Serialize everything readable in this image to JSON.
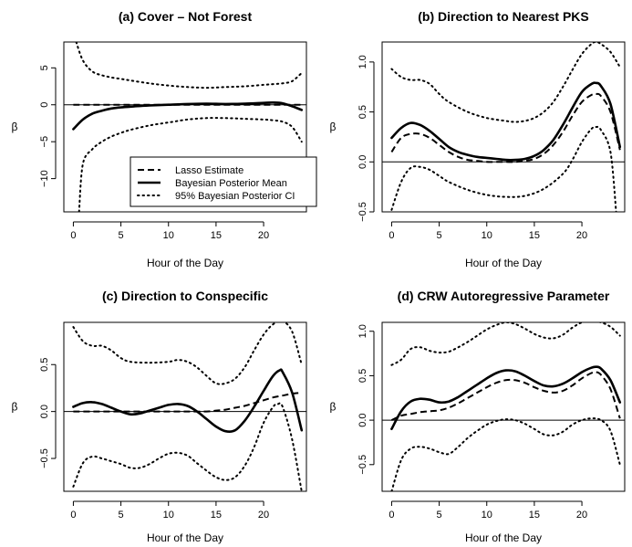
{
  "figure": {
    "legend": {
      "placement": "bottom-right of panel (a)",
      "entries": [
        {
          "label": "Lasso Estimate",
          "style": "dashed"
        },
        {
          "label": "Bayesian Posterior Mean",
          "style": "solid"
        },
        {
          "label": "95% Bayesian Posterior CI",
          "style": "dotted"
        }
      ]
    }
  },
  "chart_data": [
    {
      "type": "line",
      "title": "(a) Cover – Not Forest",
      "xlabel": "Hour of the Day",
      "ylabel": "β",
      "xlim": [
        -1,
        24.5
      ],
      "ylim": [
        -14.5,
        8.5
      ],
      "xticks": [
        0,
        5,
        10,
        15,
        20
      ],
      "yticks": [
        -10,
        -5,
        0,
        5
      ],
      "ytick_labels": [
        "−10",
        "−5",
        "0",
        "5"
      ],
      "hline": 0,
      "grid": false,
      "series": [
        {
          "name": "Lasso Estimate",
          "style": "dashed",
          "x": [
            0,
            2,
            4,
            6,
            8,
            10,
            12,
            14,
            16,
            18,
            20,
            22,
            24
          ],
          "y": [
            0,
            0,
            0,
            0,
            0,
            0,
            0,
            0,
            0,
            0,
            0,
            0,
            0
          ]
        },
        {
          "name": "Bayesian Posterior Mean",
          "style": "solid",
          "x": [
            0,
            1,
            2,
            3,
            4,
            5,
            6,
            8,
            10,
            12,
            14,
            16,
            18,
            20,
            21,
            22,
            23,
            24
          ],
          "y": [
            -3.3,
            -2.0,
            -1.2,
            -0.8,
            -0.5,
            -0.35,
            -0.25,
            -0.1,
            0.0,
            0.1,
            0.15,
            0.1,
            0.15,
            0.25,
            0.3,
            0.2,
            -0.2,
            -0.7
          ]
        },
        {
          "name": "95% Bayesian Posterior CI upper",
          "style": "dotted",
          "x": [
            0.3,
            1,
            2,
            3,
            4,
            5,
            6,
            8,
            10,
            12,
            14,
            16,
            18,
            20,
            21,
            22,
            23,
            24
          ],
          "y": [
            8.5,
            6.0,
            4.5,
            4.0,
            3.7,
            3.5,
            3.3,
            2.9,
            2.6,
            2.4,
            2.3,
            2.4,
            2.5,
            2.7,
            2.8,
            2.9,
            3.2,
            4.3
          ]
        },
        {
          "name": "95% Bayesian Posterior CI lower",
          "style": "dotted",
          "x": [
            0.6,
            1,
            2,
            3,
            4,
            5,
            6,
            8,
            10,
            12,
            14,
            16,
            18,
            20,
            21,
            22,
            23,
            24
          ],
          "y": [
            -14.5,
            -8.0,
            -6.0,
            -5.0,
            -4.3,
            -3.8,
            -3.4,
            -2.8,
            -2.4,
            -2.0,
            -1.8,
            -1.8,
            -1.9,
            -2.0,
            -2.1,
            -2.3,
            -3.0,
            -5.0
          ]
        }
      ]
    },
    {
      "type": "line",
      "title": "(b) Direction to Nearest PKS",
      "xlabel": "Hour of the Day",
      "ylabel": "β",
      "xlim": [
        -1,
        24.5
      ],
      "ylim": [
        -0.5,
        1.2
      ],
      "xticks": [
        0,
        5,
        10,
        15,
        20
      ],
      "yticks": [
        -0.5,
        0.0,
        0.5,
        1.0
      ],
      "ytick_labels": [
        "−0.5",
        "0.0",
        "0.5",
        "1.0"
      ],
      "hline": 0,
      "grid": false,
      "series": [
        {
          "name": "Lasso Estimate",
          "style": "dashed",
          "x": [
            0,
            1,
            2,
            3,
            4,
            5,
            6,
            7,
            8,
            9,
            10,
            11,
            12,
            13,
            14,
            15,
            16,
            17,
            18,
            19,
            20,
            21,
            21.5,
            22,
            23,
            24
          ],
          "y": [
            0.1,
            0.24,
            0.28,
            0.28,
            0.24,
            0.17,
            0.1,
            0.05,
            0.02,
            0.01,
            0.0,
            0.0,
            0.0,
            0.0,
            0.01,
            0.03,
            0.08,
            0.17,
            0.3,
            0.46,
            0.6,
            0.67,
            0.68,
            0.66,
            0.5,
            0.12
          ]
        },
        {
          "name": "Bayesian Posterior Mean",
          "style": "solid",
          "x": [
            0,
            1,
            2,
            3,
            4,
            5,
            6,
            7,
            8,
            9,
            10,
            11,
            12,
            13,
            14,
            15,
            16,
            17,
            18,
            19,
            20,
            21,
            21.5,
            22,
            23,
            24
          ],
          "y": [
            0.24,
            0.34,
            0.39,
            0.37,
            0.31,
            0.23,
            0.15,
            0.1,
            0.07,
            0.05,
            0.04,
            0.03,
            0.02,
            0.02,
            0.03,
            0.06,
            0.12,
            0.22,
            0.37,
            0.54,
            0.7,
            0.78,
            0.79,
            0.76,
            0.58,
            0.15
          ]
        },
        {
          "name": "95% Bayesian Posterior CI upper",
          "style": "dotted",
          "x": [
            0,
            1,
            2,
            3,
            4,
            5,
            6,
            8,
            10,
            12,
            13,
            14,
            15,
            16,
            17,
            18,
            19,
            20,
            21,
            21.5,
            22,
            23,
            24
          ],
          "y": [
            0.93,
            0.85,
            0.82,
            0.82,
            0.78,
            0.68,
            0.6,
            0.5,
            0.44,
            0.41,
            0.4,
            0.41,
            0.44,
            0.5,
            0.6,
            0.75,
            0.92,
            1.08,
            1.18,
            1.2,
            1.18,
            1.1,
            0.95
          ]
        },
        {
          "name": "95% Bayesian Posterior CI lower",
          "style": "dotted",
          "x": [
            0,
            1,
            2,
            3,
            4,
            5,
            6,
            8,
            10,
            12,
            14,
            16,
            18,
            19,
            20,
            21,
            21.5,
            22,
            23,
            23.6
          ],
          "y": [
            -0.48,
            -0.2,
            -0.06,
            -0.05,
            -0.08,
            -0.14,
            -0.2,
            -0.28,
            -0.33,
            -0.35,
            -0.34,
            -0.27,
            -0.12,
            0.02,
            0.2,
            0.33,
            0.35,
            0.32,
            0.1,
            -0.5
          ]
        }
      ]
    },
    {
      "type": "line",
      "title": "(c) Direction to Conspecific",
      "xlabel": "Hour of the Day",
      "ylabel": "β",
      "xlim": [
        -1,
        24.5
      ],
      "ylim": [
        -0.85,
        0.95
      ],
      "xticks": [
        0,
        5,
        10,
        15,
        20
      ],
      "yticks": [
        -0.5,
        0.0,
        0.5
      ],
      "ytick_labels": [
        "−0.5",
        "0.0",
        "0.5"
      ],
      "hline": 0,
      "grid": false,
      "series": [
        {
          "name": "Lasso Estimate",
          "style": "dashed",
          "x": [
            0,
            2,
            4,
            6,
            8,
            10,
            12,
            14,
            15,
            16,
            17,
            18,
            19,
            20,
            21,
            22,
            23,
            24
          ],
          "y": [
            0,
            0,
            0,
            0,
            0,
            0,
            0,
            0,
            0.01,
            0.02,
            0.04,
            0.06,
            0.09,
            0.12,
            0.15,
            0.17,
            0.19,
            0.2
          ]
        },
        {
          "name": "Bayesian Posterior Mean",
          "style": "solid",
          "x": [
            0,
            1,
            2,
            3,
            4,
            5,
            6,
            7,
            8,
            9,
            10,
            11,
            12,
            13,
            14,
            15,
            16,
            17,
            18,
            19,
            20,
            21,
            21.7,
            22,
            23,
            24
          ],
          "y": [
            0.05,
            0.09,
            0.1,
            0.08,
            0.04,
            0.0,
            -0.03,
            -0.02,
            0.01,
            0.04,
            0.07,
            0.08,
            0.06,
            0.0,
            -0.08,
            -0.16,
            -0.21,
            -0.2,
            -0.1,
            0.05,
            0.22,
            0.38,
            0.44,
            0.42,
            0.2,
            -0.2
          ]
        },
        {
          "name": "95% Bayesian Posterior CI upper",
          "style": "dotted",
          "x": [
            0,
            1,
            2,
            3,
            4,
            5,
            6,
            8,
            10,
            11,
            12,
            13,
            14,
            15,
            16,
            17,
            18,
            19,
            20,
            21,
            22,
            23,
            24
          ],
          "y": [
            0.9,
            0.75,
            0.7,
            0.7,
            0.65,
            0.57,
            0.53,
            0.52,
            0.53,
            0.55,
            0.53,
            0.47,
            0.38,
            0.3,
            0.3,
            0.35,
            0.47,
            0.65,
            0.82,
            0.93,
            0.96,
            0.85,
            0.5
          ]
        },
        {
          "name": "95% Bayesian Posterior CI lower",
          "style": "dotted",
          "x": [
            0,
            1,
            2,
            3,
            4,
            5,
            6,
            7,
            8,
            9,
            10,
            11,
            12,
            13,
            14,
            15,
            16,
            17,
            18,
            19,
            20,
            21,
            21.5,
            22,
            23,
            24
          ],
          "y": [
            -0.8,
            -0.55,
            -0.48,
            -0.5,
            -0.53,
            -0.56,
            -0.6,
            -0.6,
            -0.56,
            -0.5,
            -0.45,
            -0.44,
            -0.47,
            -0.55,
            -0.63,
            -0.7,
            -0.73,
            -0.7,
            -0.58,
            -0.38,
            -0.12,
            0.05,
            0.08,
            0.05,
            -0.3,
            -0.85
          ]
        }
      ]
    },
    {
      "type": "line",
      "title": "(d) CRW Autoregressive Parameter",
      "xlabel": "Hour of the Day",
      "ylabel": "β",
      "xlim": [
        -1,
        24.5
      ],
      "ylim": [
        -0.8,
        1.1
      ],
      "xticks": [
        0,
        5,
        10,
        15,
        20
      ],
      "yticks": [
        -0.5,
        0.0,
        0.5,
        1.0
      ],
      "ytick_labels": [
        "−0.5",
        "0.0",
        "0.5",
        "1.0"
      ],
      "hline": 0,
      "grid": false,
      "series": [
        {
          "name": "Lasso Estimate",
          "style": "dashed",
          "x": [
            0,
            1,
            2,
            3,
            4,
            5,
            6,
            7,
            8,
            9,
            10,
            11,
            12,
            13,
            14,
            15,
            16,
            17,
            18,
            19,
            20,
            21,
            21.5,
            22,
            23,
            24
          ],
          "y": [
            0.0,
            0.05,
            0.07,
            0.09,
            0.1,
            0.11,
            0.14,
            0.19,
            0.25,
            0.31,
            0.37,
            0.42,
            0.45,
            0.45,
            0.42,
            0.37,
            0.33,
            0.31,
            0.33,
            0.39,
            0.47,
            0.53,
            0.54,
            0.51,
            0.35,
            0.02
          ]
        },
        {
          "name": "Bayesian Posterior Mean",
          "style": "solid",
          "x": [
            0,
            1,
            2,
            3,
            4,
            5,
            6,
            7,
            8,
            9,
            10,
            11,
            12,
            13,
            14,
            15,
            16,
            17,
            18,
            19,
            20,
            21,
            21.5,
            22,
            23,
            24
          ],
          "y": [
            -0.1,
            0.1,
            0.21,
            0.24,
            0.23,
            0.2,
            0.21,
            0.26,
            0.33,
            0.4,
            0.47,
            0.53,
            0.56,
            0.55,
            0.5,
            0.44,
            0.39,
            0.38,
            0.41,
            0.47,
            0.54,
            0.59,
            0.6,
            0.58,
            0.45,
            0.2
          ]
        },
        {
          "name": "95% Bayesian Posterior CI upper",
          "style": "dotted",
          "x": [
            0,
            1,
            2,
            3,
            4,
            5,
            6,
            7,
            8,
            9,
            10,
            11,
            12,
            13,
            14,
            15,
            16,
            17,
            18,
            19,
            20,
            21,
            22,
            23,
            24
          ],
          "y": [
            0.62,
            0.68,
            0.8,
            0.82,
            0.78,
            0.76,
            0.77,
            0.82,
            0.88,
            0.95,
            1.02,
            1.07,
            1.1,
            1.08,
            1.03,
            0.97,
            0.93,
            0.92,
            0.96,
            1.04,
            1.1,
            1.12,
            1.1,
            1.05,
            0.95
          ]
        },
        {
          "name": "95% Bayesian Posterior CI lower",
          "style": "dotted",
          "x": [
            0,
            1,
            2,
            3,
            4,
            5,
            6,
            7,
            8,
            9,
            10,
            11,
            12,
            13,
            14,
            15,
            16,
            17,
            18,
            19,
            20,
            21,
            22,
            23,
            24
          ],
          "y": [
            -0.8,
            -0.45,
            -0.32,
            -0.3,
            -0.32,
            -0.36,
            -0.38,
            -0.3,
            -0.2,
            -0.12,
            -0.05,
            -0.01,
            0.01,
            0.0,
            -0.04,
            -0.1,
            -0.16,
            -0.17,
            -0.13,
            -0.05,
            0.0,
            0.02,
            0.0,
            -0.12,
            -0.5
          ]
        }
      ]
    }
  ]
}
